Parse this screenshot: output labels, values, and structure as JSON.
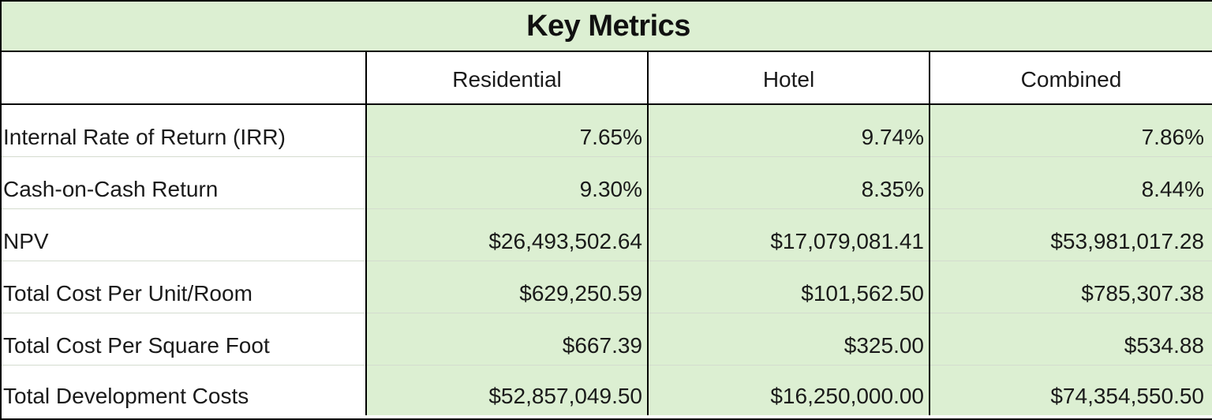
{
  "title": "Key Metrics",
  "columns": [
    "",
    "Residential",
    "Hotel",
    "Combined"
  ],
  "rows": [
    {
      "label": "Internal Rate of Return (IRR)",
      "residential": "7.65%",
      "hotel": "9.74%",
      "combined": "7.86%"
    },
    {
      "label": "Cash-on-Cash Return",
      "residential": "9.30%",
      "hotel": "8.35%",
      "combined": "8.44%"
    },
    {
      "label": "NPV",
      "residential": "$26,493,502.64",
      "hotel": "$17,079,081.41",
      "combined": "$53,981,017.28"
    },
    {
      "label": "Total Cost Per Unit/Room",
      "residential": "$629,250.59",
      "hotel": "$101,562.50",
      "combined": "$785,307.38"
    },
    {
      "label": "Total Cost Per Square Foot",
      "residential": "$667.39",
      "hotel": "$325.00",
      "combined": "$534.88"
    },
    {
      "label": "Total Development Costs",
      "residential": "$52,857,049.50",
      "hotel": "$16,250,000.00",
      "combined": "$74,354,550.50"
    }
  ],
  "colors": {
    "header_fill": "#dcefd2",
    "value_fill": "#dcefd2",
    "border": "#000000"
  }
}
